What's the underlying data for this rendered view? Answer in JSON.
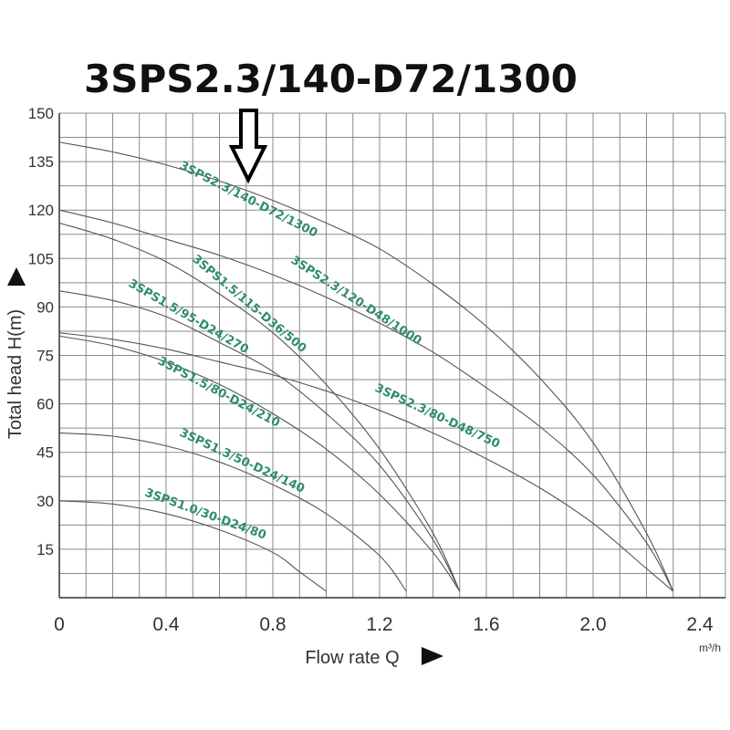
{
  "headline": "3SPS2.3/140-D72/1300",
  "chart_data": {
    "type": "line",
    "xlabel": "Flow rate Q",
    "xunit": "m³/h",
    "ylabel": "Total head H(m)",
    "xlim": [
      0,
      2.4
    ],
    "ylim": [
      0,
      150
    ],
    "x_ticks": [
      "0",
      "0.4",
      "0.8",
      "1.2",
      "1.6",
      "2.0",
      "2.4"
    ],
    "y_ticks": [
      "15",
      "30",
      "45",
      "60",
      "75",
      "90",
      "105",
      "120",
      "135",
      "150"
    ],
    "grid": true,
    "highlight_marker": "down-arrow",
    "series": [
      {
        "name": "3SPS2.3/140-D72/1300",
        "x": [
          0,
          0.2,
          0.4,
          0.6,
          0.8,
          1.0,
          1.2,
          1.4,
          1.6,
          1.8,
          2.0,
          2.2,
          2.3
        ],
        "y": [
          141,
          138,
          134,
          129,
          123,
          116,
          108,
          97,
          84,
          68,
          48,
          20,
          2
        ]
      },
      {
        "name": "3SPS2.3/120-D48/1000",
        "x": [
          0,
          0.2,
          0.4,
          0.6,
          0.8,
          1.0,
          1.2,
          1.4,
          1.6,
          1.8,
          2.0,
          2.2,
          2.3
        ],
        "y": [
          120,
          116,
          111,
          106,
          100,
          93,
          85,
          76,
          65,
          53,
          38,
          17,
          2
        ]
      },
      {
        "name": "3SPS1.5/115-D36/500",
        "x": [
          0,
          0.2,
          0.4,
          0.6,
          0.8,
          1.0,
          1.2,
          1.4,
          1.5
        ],
        "y": [
          116,
          111,
          104,
          94,
          82,
          66,
          46,
          20,
          2
        ]
      },
      {
        "name": "3SPS1.5/95-D24/270",
        "x": [
          0,
          0.2,
          0.4,
          0.6,
          0.8,
          1.0,
          1.2,
          1.4,
          1.5
        ],
        "y": [
          95,
          92,
          87,
          79,
          70,
          57,
          41,
          18,
          2
        ]
      },
      {
        "name": "3SPS2.3/80-D48/750",
        "x": [
          0,
          0.2,
          0.4,
          0.6,
          0.8,
          1.0,
          1.2,
          1.4,
          1.6,
          1.8,
          2.0,
          2.2,
          2.3
        ],
        "y": [
          82,
          80,
          77,
          73,
          69,
          64,
          58,
          51,
          43,
          34,
          23,
          9,
          2
        ]
      },
      {
        "name": "3SPS1.5/80-D24/210",
        "x": [
          0,
          0.2,
          0.4,
          0.6,
          0.8,
          1.0,
          1.2,
          1.4,
          1.5
        ],
        "y": [
          81,
          78,
          73,
          66,
          57,
          46,
          32,
          14,
          2
        ]
      },
      {
        "name": "3SPS1.3/50-D24/140",
        "x": [
          0,
          0.2,
          0.4,
          0.6,
          0.8,
          1.0,
          1.2,
          1.3
        ],
        "y": [
          51,
          50,
          47,
          42,
          35,
          26,
          13,
          2
        ]
      },
      {
        "name": "3SPS1.0/30-D24/80",
        "x": [
          0,
          0.2,
          0.4,
          0.6,
          0.8,
          0.9,
          1.0
        ],
        "y": [
          30,
          29,
          26,
          21,
          14,
          8,
          2
        ]
      }
    ],
    "colors": {
      "curve": "#555555",
      "label": "#2e8b70",
      "grid": "#8a8a8a",
      "text": "#333333"
    }
  }
}
